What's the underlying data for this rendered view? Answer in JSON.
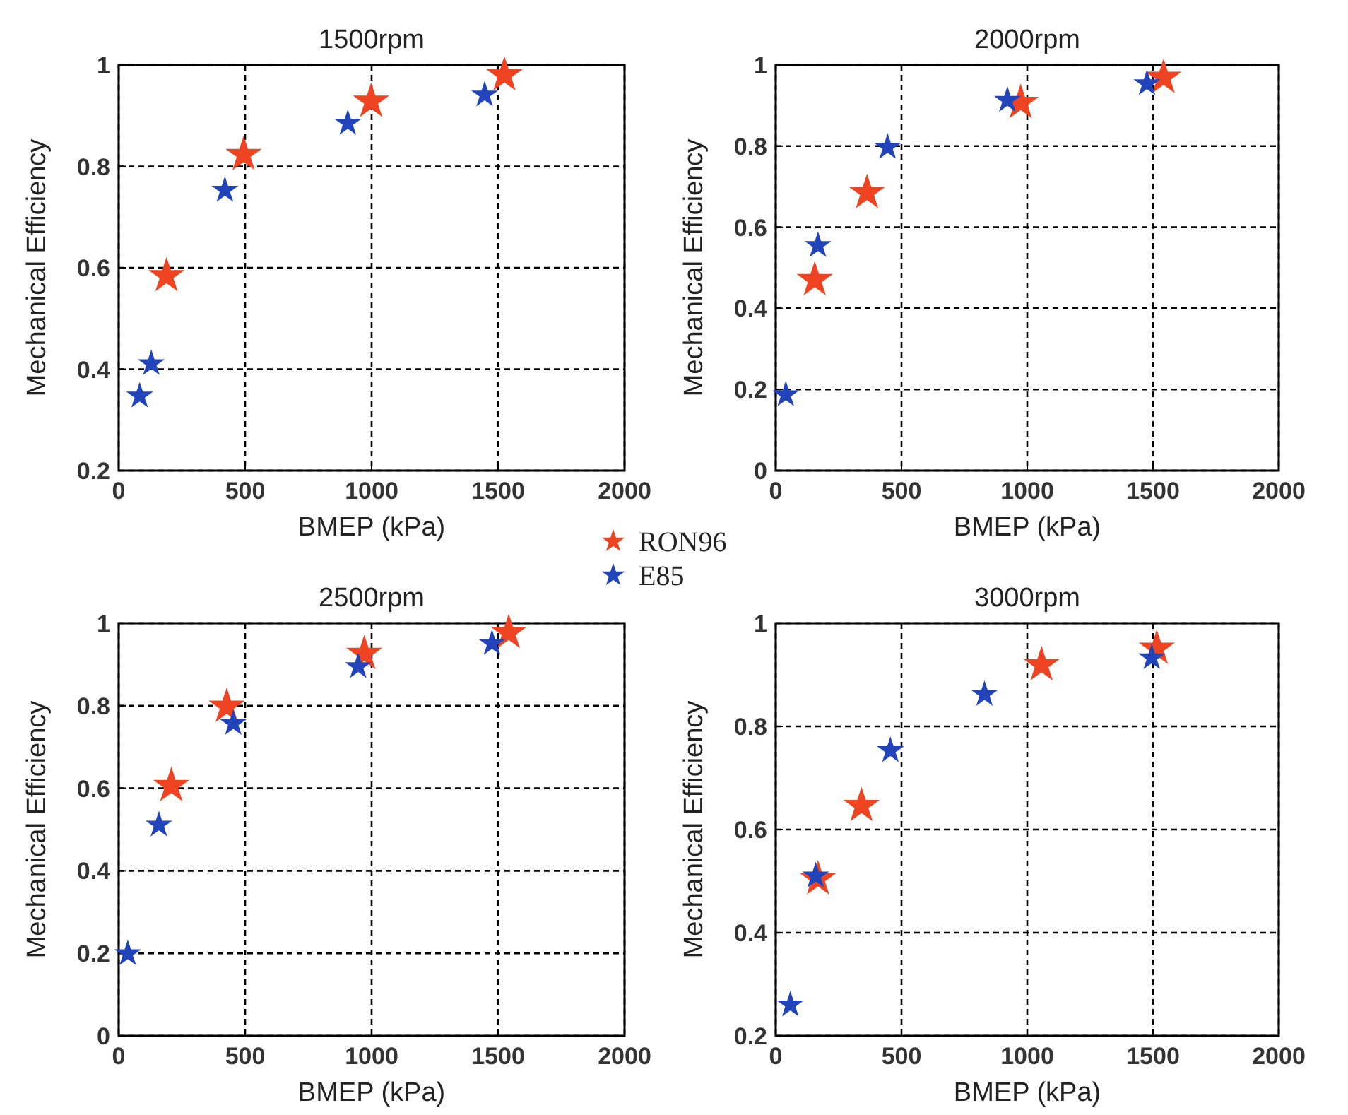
{
  "chart_data": [
    {
      "type": "scatter",
      "title": "1500rpm",
      "xlabel": "BMEP (kPa)",
      "ylabel": "Mechanical Efficiency",
      "xlim": [
        0,
        2000
      ],
      "xticks": [
        0,
        500,
        1000,
        1500,
        2000
      ],
      "ylim": [
        0.2,
        1
      ],
      "yticks": [
        0.2,
        0.4,
        0.6,
        0.8,
        1
      ],
      "grid": true,
      "marker": "star",
      "legend": "bottom right",
      "series": [
        {
          "name": "RON96",
          "color": "#ee4422",
          "x": [
            189,
            494,
            998,
            1525
          ],
          "values": [
            0.584,
            0.823,
            0.928,
            0.98
          ]
        },
        {
          "name": "E85",
          "color": "#2244bb",
          "x": [
            83,
            129,
            420,
            906,
            1447
          ],
          "values": [
            0.347,
            0.411,
            0.753,
            0.885,
            0.941
          ]
        }
      ]
    },
    {
      "type": "scatter",
      "title": "2000rpm",
      "xlabel": "BMEP (kPa)",
      "ylabel": "Mechanical Efficiency",
      "xlim": [
        0,
        2000
      ],
      "xticks": [
        0,
        500,
        1000,
        1500,
        2000
      ],
      "ylim": [
        0,
        1
      ],
      "yticks": [
        0,
        0.2,
        0.4,
        0.6,
        0.8,
        1
      ],
      "grid": true,
      "marker": "star",
      "series": [
        {
          "color": "#ee4422",
          "x": [
            155,
            363,
            974,
            1542
          ],
          "values": [
            0.47,
            0.685,
            0.907,
            0.969
          ]
        },
        {
          "color": "#2244bb",
          "x": [
            40,
            168,
            445,
            921,
            1476
          ],
          "values": [
            0.187,
            0.555,
            0.797,
            0.913,
            0.954
          ]
        }
      ]
    },
    {
      "type": "scatter",
      "title": "2500rpm",
      "xlabel": "BMEP (kPa)",
      "ylabel": "Mechanical Efficiency",
      "xlim": [
        0,
        2000
      ],
      "xticks": [
        0,
        500,
        1000,
        1500,
        2000
      ],
      "ylim": [
        0,
        1
      ],
      "yticks": [
        0,
        0.2,
        0.4,
        0.6,
        0.8,
        1
      ],
      "grid": true,
      "marker": "star",
      "series": [
        {
          "color": "#ee4422",
          "x": [
            208,
            427,
            971,
            1542
          ],
          "values": [
            0.606,
            0.798,
            0.926,
            0.977
          ]
        },
        {
          "color": "#2244bb",
          "x": [
            36,
            159,
            453,
            947,
            1476
          ],
          "values": [
            0.199,
            0.511,
            0.757,
            0.895,
            0.951
          ]
        }
      ]
    },
    {
      "type": "scatter",
      "title": "3000rpm",
      "xlabel": "BMEP (kPa)",
      "ylabel": "Mechanical Efficiency",
      "xlim": [
        0,
        2000
      ],
      "xticks": [
        0,
        500,
        1000,
        1500,
        2000
      ],
      "ylim": [
        0.2,
        1
      ],
      "yticks": [
        0.2,
        0.4,
        0.6,
        0.8,
        1
      ],
      "grid": true,
      "marker": "star",
      "series": [
        {
          "color": "#ee4422",
          "x": [
            168,
            341,
            1057,
            1515
          ],
          "values": [
            0.504,
            0.646,
            0.919,
            0.951
          ]
        },
        {
          "color": "#2244bb",
          "x": [
            58,
            159,
            456,
            830,
            1495
          ],
          "values": [
            0.26,
            0.51,
            0.753,
            0.862,
            0.933
          ]
        }
      ]
    }
  ]
}
